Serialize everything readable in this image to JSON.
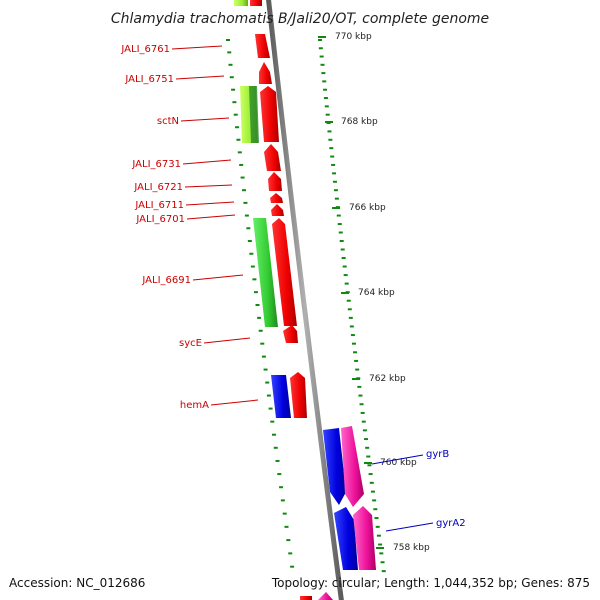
{
  "title": "Chlamydia trachomatis B/Jali20/OT, complete genome",
  "footer": {
    "accession": "Accession: NC_012686",
    "summary": "Topology: circular; Length: 1,044,352 bp; Genes: 875"
  },
  "colors": {
    "backbone": "#888888",
    "tick": "#118811",
    "red_gene": "#ee0000",
    "green_gene": "#33cc33",
    "lime_gene": "#99ee33",
    "blue_gene": "#0000dd",
    "magenta_gene": "#ee1199",
    "red_label": "#cc0000",
    "blue_label": "#0000bb"
  },
  "scale_labels": [
    {
      "kbp": 770,
      "text": "770 kbp"
    },
    {
      "kbp": 768,
      "text": "768 kbp"
    },
    {
      "kbp": 766,
      "text": "766 kbp"
    },
    {
      "kbp": 764,
      "text": "764 kbp"
    },
    {
      "kbp": 762,
      "text": "762 kbp"
    },
    {
      "kbp": 760,
      "text": "760 kbp"
    },
    {
      "kbp": 758,
      "text": "758 kbp"
    }
  ],
  "gene_labels": [
    {
      "name": "JALI_6761",
      "color": "red"
    },
    {
      "name": "JALI_6751",
      "color": "red"
    },
    {
      "name": "sctN",
      "color": "red"
    },
    {
      "name": "JALI_6731",
      "color": "red"
    },
    {
      "name": "JALI_6721",
      "color": "red"
    },
    {
      "name": "JALI_6711",
      "color": "red"
    },
    {
      "name": "JALI_6701",
      "color": "red"
    },
    {
      "name": "JALI_6691",
      "color": "red"
    },
    {
      "name": "sycE",
      "color": "red"
    },
    {
      "name": "hemA",
      "color": "red"
    },
    {
      "name": "gyrB",
      "color": "blue"
    },
    {
      "name": "gyrA2",
      "color": "blue"
    }
  ]
}
